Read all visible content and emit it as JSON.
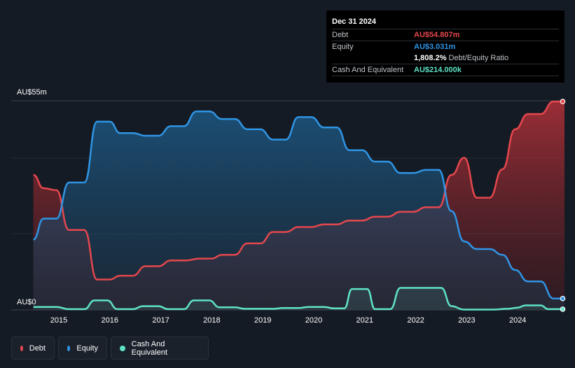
{
  "tooltip": {
    "date": "Dec 31 2024",
    "debt_label": "Debt",
    "debt_value": "AU$54.807m",
    "equity_label": "Equity",
    "equity_value": "AU$3.031m",
    "ratio_value": "1,808.2%",
    "ratio_label": "Debt/Equity Ratio",
    "cash_label": "Cash And Equivalent",
    "cash_value": "AU$214.000k"
  },
  "legend": {
    "debt": "Debt",
    "equity": "Equity",
    "cash": "Cash And Equivalent"
  },
  "colors": {
    "debt": "#e5474d",
    "equity": "#2f95e5",
    "cash": "#5fe3c6"
  },
  "chart_data": {
    "type": "area",
    "title": "",
    "xlabel": "",
    "ylabel": "",
    "y_top_label": "AU$55m",
    "y_bottom_label": "AU$0",
    "ylim": [
      0,
      55
    ],
    "xlim": [
      2014.5,
      2025.0
    ],
    "x_ticks": [
      "2015",
      "2016",
      "2017",
      "2018",
      "2019",
      "2020",
      "2021",
      "2022",
      "2023",
      "2024"
    ],
    "series": [
      {
        "name": "Debt",
        "points": [
          [
            2014.5,
            35.5
          ],
          [
            2014.7,
            32.0
          ],
          [
            2014.95,
            31.5
          ],
          [
            2015.2,
            21.0
          ],
          [
            2015.5,
            21.0
          ],
          [
            2015.75,
            8.0
          ],
          [
            2016.0,
            8.0
          ],
          [
            2016.2,
            9.0
          ],
          [
            2016.45,
            9.0
          ],
          [
            2016.7,
            11.5
          ],
          [
            2016.95,
            11.5
          ],
          [
            2017.2,
            13.0
          ],
          [
            2017.5,
            13.0
          ],
          [
            2017.75,
            13.5
          ],
          [
            2018.0,
            13.5
          ],
          [
            2018.2,
            14.5
          ],
          [
            2018.45,
            14.5
          ],
          [
            2018.7,
            17.5
          ],
          [
            2018.95,
            17.5
          ],
          [
            2019.2,
            20.5
          ],
          [
            2019.45,
            20.5
          ],
          [
            2019.7,
            21.8
          ],
          [
            2019.95,
            21.8
          ],
          [
            2020.2,
            22.5
          ],
          [
            2020.45,
            22.5
          ],
          [
            2020.7,
            23.5
          ],
          [
            2020.95,
            23.5
          ],
          [
            2021.2,
            24.5
          ],
          [
            2021.45,
            24.5
          ],
          [
            2021.7,
            25.8
          ],
          [
            2021.95,
            25.8
          ],
          [
            2022.2,
            27.0
          ],
          [
            2022.45,
            27.0
          ],
          [
            2022.7,
            35.5
          ],
          [
            2022.95,
            40.0
          ],
          [
            2023.2,
            29.5
          ],
          [
            2023.45,
            29.5
          ],
          [
            2023.7,
            37.0
          ],
          [
            2023.95,
            47.5
          ],
          [
            2024.2,
            51.5
          ],
          [
            2024.45,
            51.5
          ],
          [
            2024.7,
            54.8
          ],
          [
            2024.95,
            54.8
          ]
        ]
      },
      {
        "name": "Equity",
        "points": [
          [
            2014.5,
            18.5
          ],
          [
            2014.7,
            24.0
          ],
          [
            2014.95,
            24.0
          ],
          [
            2015.2,
            33.5
          ],
          [
            2015.5,
            33.5
          ],
          [
            2015.75,
            49.5
          ],
          [
            2016.0,
            49.5
          ],
          [
            2016.2,
            46.5
          ],
          [
            2016.45,
            46.5
          ],
          [
            2016.7,
            45.8
          ],
          [
            2016.95,
            45.8
          ],
          [
            2017.2,
            48.3
          ],
          [
            2017.45,
            48.3
          ],
          [
            2017.7,
            52.2
          ],
          [
            2017.95,
            52.2
          ],
          [
            2018.2,
            50.2
          ],
          [
            2018.45,
            50.2
          ],
          [
            2018.7,
            47.5
          ],
          [
            2018.95,
            47.5
          ],
          [
            2019.2,
            44.8
          ],
          [
            2019.45,
            44.8
          ],
          [
            2019.7,
            50.7
          ],
          [
            2019.95,
            50.7
          ],
          [
            2020.2,
            48.0
          ],
          [
            2020.45,
            48.0
          ],
          [
            2020.7,
            42.0
          ],
          [
            2020.95,
            42.0
          ],
          [
            2021.2,
            39.0
          ],
          [
            2021.45,
            39.0
          ],
          [
            2021.7,
            36.0
          ],
          [
            2021.95,
            36.0
          ],
          [
            2022.2,
            36.8
          ],
          [
            2022.45,
            36.8
          ],
          [
            2022.7,
            26.0
          ],
          [
            2022.95,
            18.0
          ],
          [
            2023.2,
            16.0
          ],
          [
            2023.45,
            16.0
          ],
          [
            2023.7,
            14.5
          ],
          [
            2023.95,
            10.5
          ],
          [
            2024.2,
            7.5
          ],
          [
            2024.45,
            7.5
          ],
          [
            2024.7,
            3.0
          ],
          [
            2024.95,
            3.0
          ]
        ]
      },
      {
        "name": "Cash And Equivalent",
        "points": [
          [
            2014.5,
            0.8
          ],
          [
            2014.95,
            0.8
          ],
          [
            2015.2,
            0.2
          ],
          [
            2015.5,
            0.2
          ],
          [
            2015.7,
            2.5
          ],
          [
            2015.95,
            2.5
          ],
          [
            2016.15,
            0.2
          ],
          [
            2016.45,
            0.2
          ],
          [
            2016.65,
            1.0
          ],
          [
            2016.95,
            1.0
          ],
          [
            2017.15,
            0.2
          ],
          [
            2017.45,
            0.2
          ],
          [
            2017.65,
            2.5
          ],
          [
            2017.95,
            2.5
          ],
          [
            2018.15,
            0.7
          ],
          [
            2018.45,
            0.7
          ],
          [
            2018.65,
            0.3
          ],
          [
            2019.2,
            0.3
          ],
          [
            2019.4,
            0.5
          ],
          [
            2019.7,
            0.5
          ],
          [
            2019.9,
            0.8
          ],
          [
            2020.2,
            0.8
          ],
          [
            2020.4,
            0.4
          ],
          [
            2020.6,
            0.4
          ],
          [
            2020.75,
            5.5
          ],
          [
            2021.05,
            5.5
          ],
          [
            2021.2,
            0.2
          ],
          [
            2021.5,
            0.2
          ],
          [
            2021.7,
            5.8
          ],
          [
            2022.5,
            5.8
          ],
          [
            2022.7,
            1.0
          ],
          [
            2022.95,
            0.1
          ],
          [
            2023.5,
            0.1
          ],
          [
            2023.8,
            0.3
          ],
          [
            2024.0,
            0.6
          ],
          [
            2024.15,
            1.2
          ],
          [
            2024.45,
            1.2
          ],
          [
            2024.6,
            0.2
          ],
          [
            2024.95,
            0.2
          ]
        ]
      }
    ]
  }
}
